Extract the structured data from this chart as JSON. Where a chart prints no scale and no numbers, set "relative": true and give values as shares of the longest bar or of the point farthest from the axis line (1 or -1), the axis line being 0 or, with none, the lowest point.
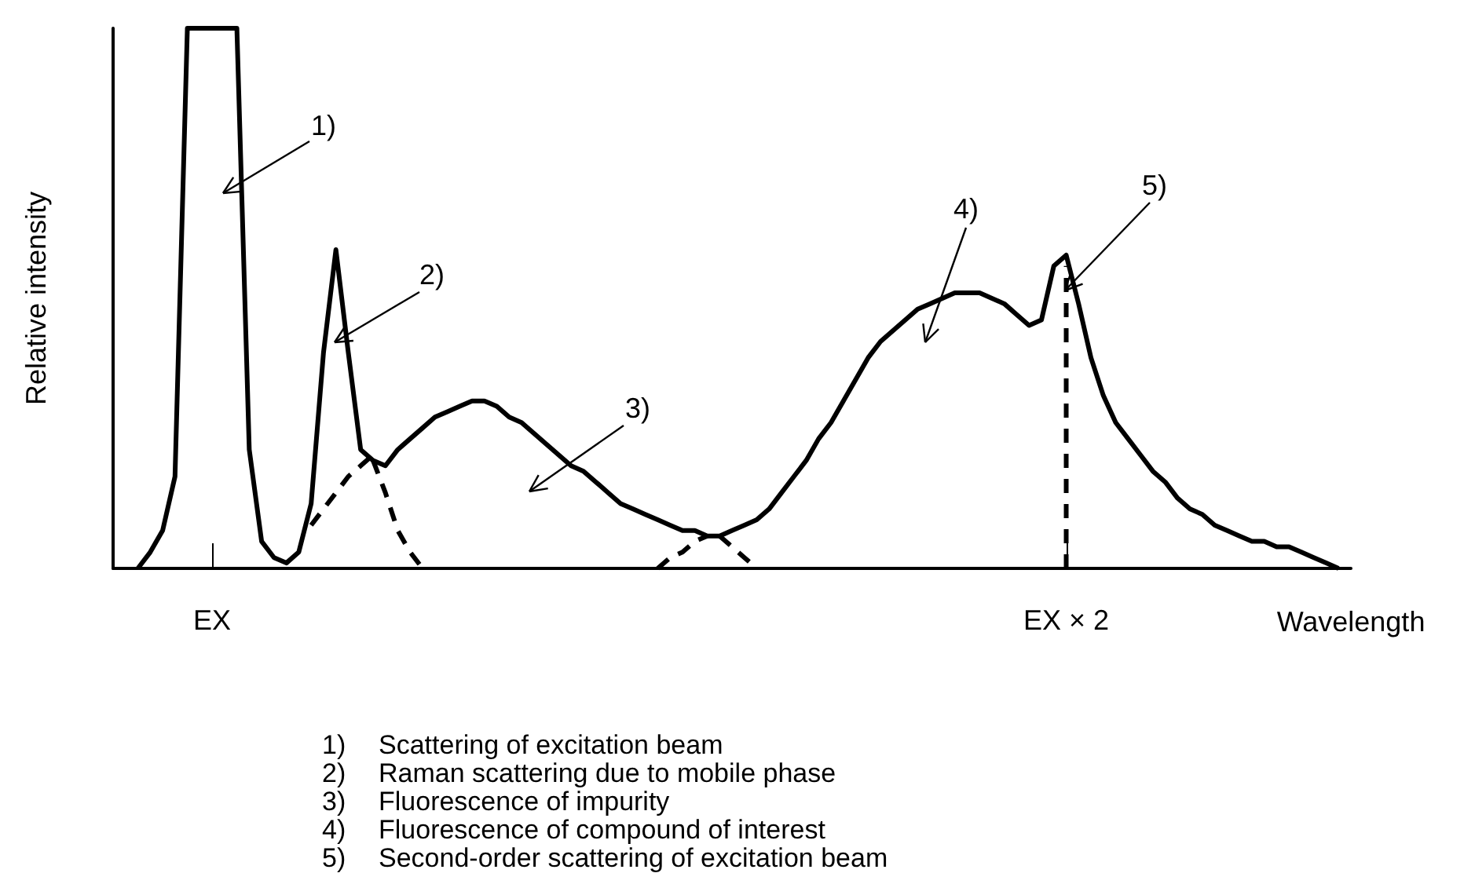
{
  "chart_data": {
    "type": "line",
    "relative": true,
    "xlabel": "Wavelength",
    "ylabel": "Relative intensity",
    "marker": "none",
    "categories": [
      null,
      null,
      null,
      null,
      null,
      null,
      null,
      null,
      "EX",
      null,
      null,
      null,
      null,
      null,
      null,
      null,
      null,
      null,
      null,
      null,
      null,
      null,
      null,
      null,
      null,
      null,
      null,
      null,
      null,
      null,
      null,
      null,
      null,
      null,
      null,
      null,
      null,
      null,
      null,
      null,
      null,
      null,
      null,
      null,
      null,
      null,
      null,
      null,
      null,
      null,
      null,
      null,
      null,
      null,
      null,
      null,
      null,
      null,
      null,
      null,
      null,
      null,
      null,
      null,
      null,
      null,
      null,
      null,
      null,
      null,
      null,
      null,
      null,
      null,
      null,
      null,
      null,
      "EX × 2",
      null,
      null,
      null,
      null,
      null,
      null,
      null,
      null,
      null,
      null,
      null,
      null,
      null,
      null,
      null,
      null,
      null,
      null,
      null,
      null,
      null,
      null,
      null
    ],
    "series": [
      {
        "color": "#000000",
        "line_style": "solid",
        "values": [
          null,
          null,
          0,
          0.03,
          0.07,
          0.17,
          1,
          1,
          1,
          1,
          1,
          0.22,
          0.05,
          0.02,
          0.01,
          0.03,
          0.12,
          0.4,
          0.59,
          0.4,
          0.22,
          0.2,
          0.19,
          0.22,
          0.24,
          0.26,
          0.28,
          0.29,
          0.3,
          0.31,
          0.31,
          0.3,
          0.28,
          0.27,
          0.25,
          0.23,
          0.21,
          0.19,
          0.18,
          0.16,
          0.14,
          0.12,
          0.11,
          0.1,
          0.09,
          0.08,
          0.07,
          0.07,
          0.06,
          0.06,
          0.07,
          0.08,
          0.09,
          0.11,
          0.14,
          0.17,
          0.2,
          0.24,
          0.27,
          0.31,
          0.35,
          0.39,
          0.42,
          0.44,
          0.46,
          0.48,
          0.49,
          0.5,
          0.51,
          0.51,
          0.51,
          0.5,
          0.49,
          0.47,
          0.45,
          0.46,
          0.56,
          0.58,
          0.49,
          0.39,
          0.32,
          0.27,
          0.24,
          0.21,
          0.18,
          0.16,
          0.13,
          0.11,
          0.1,
          0.08,
          0.07,
          0.06,
          0.05,
          0.05,
          0.04,
          0.04,
          0.03,
          0.02,
          0.01,
          0,
          null
        ]
      },
      {
        "color": "#000000",
        "line_style": "dashed",
        "values": [
          null,
          null,
          null,
          null,
          null,
          null,
          null,
          null,
          null,
          null,
          null,
          null,
          null,
          null,
          null,
          null,
          0.08,
          0.11,
          0.14,
          0.17,
          0.19,
          0.21,
          null,
          null,
          null,
          null,
          null,
          null,
          null,
          null,
          null,
          null,
          null,
          null,
          null,
          null,
          null,
          null,
          null,
          null,
          null,
          null,
          null,
          null,
          null,
          null,
          null,
          null,
          null,
          null,
          null,
          null,
          null,
          null,
          null,
          null,
          null,
          null,
          null,
          null,
          null,
          null,
          null,
          null,
          null,
          null,
          null,
          null,
          null,
          null,
          null,
          null,
          null,
          null,
          null,
          null,
          null,
          null,
          null,
          null,
          null,
          null,
          null,
          null,
          null,
          null,
          null,
          null,
          null,
          null,
          null,
          null,
          null,
          null,
          null,
          null,
          null,
          null,
          null,
          null,
          null
        ]
      },
      {
        "color": "#000000",
        "line_style": "dashed",
        "values": [
          null,
          null,
          null,
          null,
          null,
          null,
          null,
          null,
          null,
          null,
          null,
          null,
          null,
          null,
          null,
          null,
          null,
          null,
          null,
          null,
          null,
          0.2,
          0.14,
          0.07,
          0.03,
          0,
          null,
          null,
          null,
          null,
          null,
          null,
          null,
          null,
          null,
          null,
          null,
          null,
          null,
          null,
          null,
          null,
          null,
          null,
          null,
          null,
          null,
          null,
          null,
          null,
          null,
          null,
          null,
          null,
          null,
          null,
          null,
          null,
          null,
          null,
          null,
          null,
          null,
          null,
          null,
          null,
          null,
          null,
          null,
          null,
          null,
          null,
          null,
          null,
          null,
          null,
          null,
          null,
          null,
          null,
          null,
          null,
          null,
          null,
          null,
          null,
          null,
          null,
          null,
          null,
          null,
          null,
          null,
          null,
          null,
          null,
          null,
          null,
          null,
          null,
          null
        ]
      },
      {
        "color": "#000000",
        "line_style": "dashed",
        "values": [
          null,
          null,
          null,
          null,
          null,
          null,
          null,
          null,
          null,
          null,
          null,
          null,
          null,
          null,
          null,
          null,
          null,
          null,
          null,
          null,
          null,
          null,
          null,
          null,
          null,
          null,
          null,
          null,
          null,
          null,
          null,
          null,
          null,
          null,
          null,
          null,
          null,
          null,
          null,
          null,
          null,
          null,
          null,
          null,
          null,
          null,
          null,
          null,
          null,
          0.06,
          0.04,
          0.02,
          0,
          null,
          null,
          null,
          null,
          null,
          null,
          null,
          null,
          null,
          null,
          null,
          null,
          null,
          null,
          null,
          null,
          null,
          null,
          null,
          null,
          null,
          null,
          null,
          null,
          null,
          null,
          null,
          null,
          null,
          null,
          null,
          null,
          null,
          null,
          null,
          null,
          null,
          null,
          null,
          null,
          null,
          null,
          null,
          null,
          null,
          null,
          null,
          null
        ]
      },
      {
        "color": "#000000",
        "line_style": "dashed",
        "values": [
          null,
          null,
          null,
          null,
          null,
          null,
          null,
          null,
          null,
          null,
          null,
          null,
          null,
          null,
          null,
          null,
          null,
          null,
          null,
          null,
          null,
          null,
          null,
          null,
          null,
          null,
          null,
          null,
          null,
          null,
          null,
          null,
          null,
          null,
          null,
          null,
          null,
          null,
          null,
          null,
          null,
          null,
          null,
          null,
          0,
          0.02,
          0.03,
          0.05,
          0.06,
          null,
          null,
          null,
          null,
          null,
          null,
          null,
          null,
          null,
          null,
          null,
          null,
          null,
          null,
          null,
          null,
          null,
          null,
          null,
          null,
          null,
          null,
          null,
          null,
          null,
          null,
          null,
          null,
          null,
          null,
          null,
          null,
          null,
          null,
          null,
          null,
          null,
          null,
          null,
          null,
          null,
          null,
          null,
          null,
          null,
          null,
          null,
          null,
          null,
          null,
          null,
          null
        ]
      },
      {
        "color": "#000000",
        "line_style": "dashed",
        "x": [
          "EX × 2",
          "EX × 2"
        ],
        "values": [
          0,
          0.56
        ]
      }
    ],
    "annotations": [
      "1)",
      "2)",
      "3)",
      "4)",
      "5)",
      "1) Scattering of excitation beam",
      "2) Raman scattering due to mobile phase",
      "3) Fluorescence of impurity",
      "4) Fluorescence of compound of interest",
      "5) Second-order scattering of excitation beam"
    ]
  }
}
